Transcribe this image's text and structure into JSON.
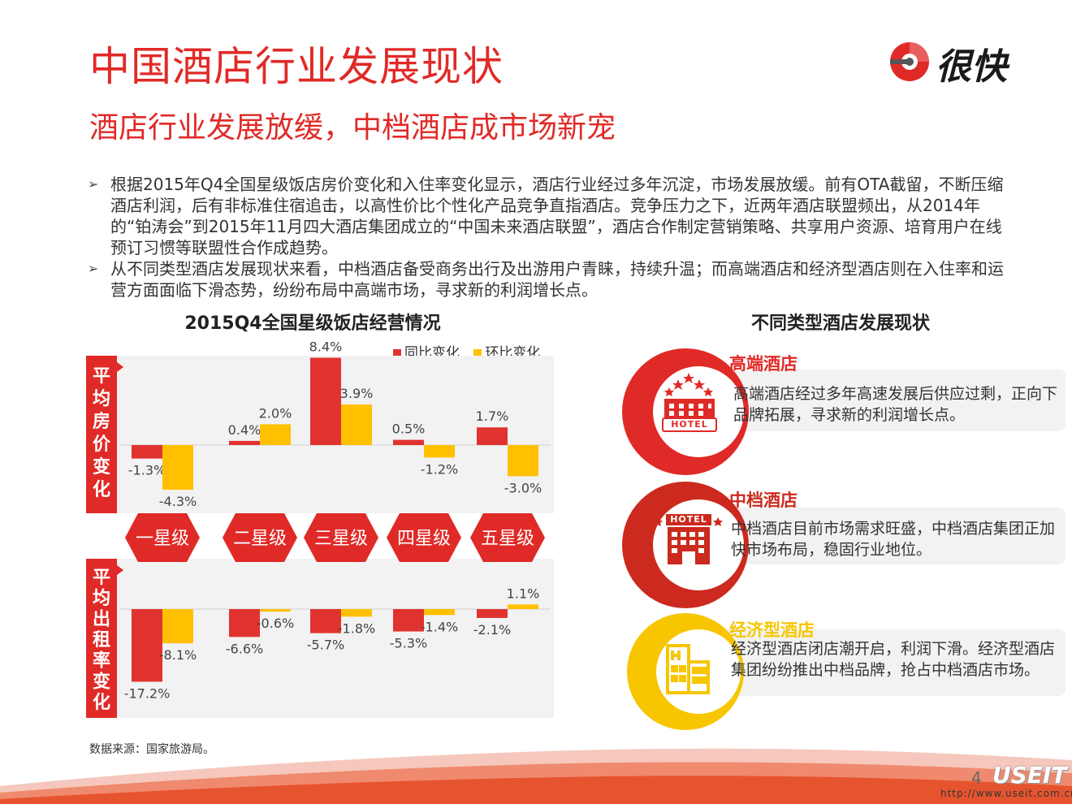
{
  "header": {
    "title": "中国酒店行业发展现状",
    "subtitle": "酒店行业发展放缓，中档酒店成市场新宠",
    "logo_text": "很快"
  },
  "bullets": [
    "根据2015年Q4全国星级饭店房价变化和入住率变化显示，酒店行业经过多年沉淀，市场发展放缓。前有OTA截留，不断压缩酒店利润，后有非标准住宿追击，以高性价比个性化产品竞争直指酒店。竞争压力之下，近两年酒店联盟频出，从2014年的“铂涛会”到2015年11月四大酒店集团成立的“中国未来酒店联盟”，酒店合作制定营销策略、共享用户资源、培育用户在线预订习惯等联盟性合作成趋势。",
    "从不同类型酒店发展现状来看，中档酒店备受商务出行及出游用户青睐，持续升温；而高端酒店和经济型酒店则在入住率和运营方面面临下滑态势，纷纷布局中高端市场，寻求新的利润增长点。"
  ],
  "chart_data": {
    "type": "bar",
    "title": "2015Q4全国星级饭店经营情况",
    "categories": [
      "一星级",
      "二星级",
      "三星级",
      "四星级",
      "五星级"
    ],
    "legend": [
      "同比变化",
      "环比变化"
    ],
    "colors": {
      "yoy": "#e03330",
      "qoq": "#ffc000",
      "band": "#e02a27",
      "hex": "#e02a27"
    },
    "panels": [
      {
        "label": "平均房价变化",
        "ylim": [
          -5,
          9
        ],
        "series": [
          {
            "name": "同比变化",
            "values": [
              -1.3,
              0.4,
              8.4,
              0.5,
              1.7
            ],
            "labels": [
              "-1.3%",
              "0.4%",
              "8.4%",
              "0.5%",
              "1.7%"
            ]
          },
          {
            "name": "环比变化",
            "values": [
              -4.3,
              2.0,
              3.9,
              -1.2,
              -3.0
            ],
            "labels": [
              "-4.3%",
              "2.0%",
              "3.9%",
              "-1.2%",
              "-3.0%"
            ]
          }
        ]
      },
      {
        "label": "平均出租率变化",
        "ylim": [
          -20,
          2
        ],
        "series": [
          {
            "name": "同比变化",
            "values": [
              -17.2,
              -6.6,
              -5.7,
              -5.3,
              -2.1
            ],
            "labels": [
              "-17.2%",
              "-6.6%",
              "-5.7%",
              "-5.3%",
              "-2.1%"
            ]
          },
          {
            "name": "环比变化",
            "values": [
              -8.1,
              -0.6,
              -1.8,
              -1.4,
              1.1
            ],
            "labels": [
              "-8.1%",
              "-0.6%",
              "-1.8%",
              "-1.4%",
              "1.1%"
            ]
          }
        ]
      }
    ],
    "source": "数据来源：国家旅游局。"
  },
  "right": {
    "title": "不同类型酒店发展现状",
    "cards": [
      {
        "label": "高端酒店",
        "text": "高端酒店经过多年高速发展后供应过剩，正向下品牌拓展，寻求新的利润增长点。",
        "color": "#e02a27",
        "icon": "hotel-stars-icon",
        "icon_text": "HOTEL"
      },
      {
        "label": "中档酒店",
        "text": "中档酒店目前市场需求旺盛，中档酒店集团正加快市场布局，稳固行业地位。",
        "color": "#cc2a1e",
        "icon": "hotel-building-icon",
        "icon_text": "HOTEL"
      },
      {
        "label": "经济型酒店",
        "text": "经济型酒店闭店潮开启，利润下滑。经济型酒店集团纷纷推出中档品牌，抢占中档酒店市场。",
        "color": "#f7c600",
        "icon": "budget-building-icon",
        "icon_text": ""
      }
    ]
  },
  "footer": {
    "page": "4",
    "brand": "USEIT",
    "url": "http://www.useit.com.cn"
  }
}
